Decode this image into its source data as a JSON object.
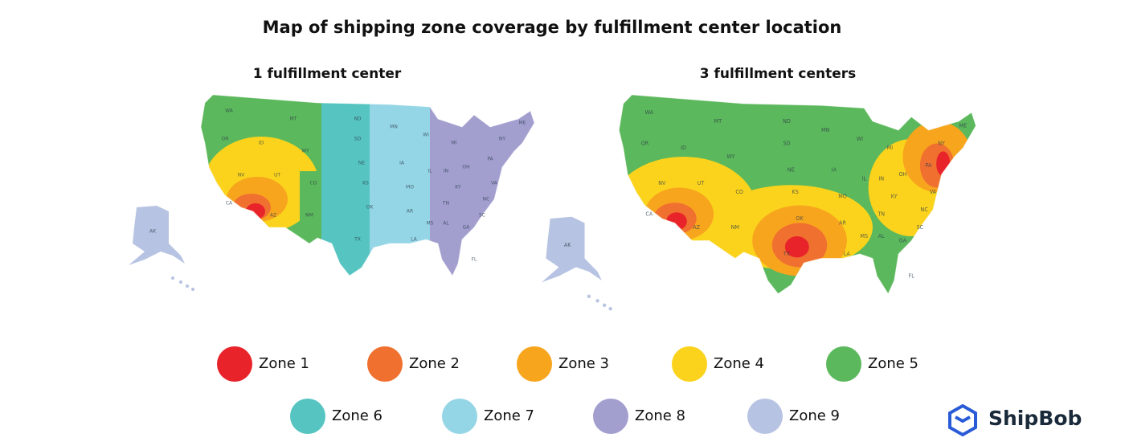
{
  "title": "Map of shipping zone coverage by fulfillment center location",
  "maps": [
    {
      "title": "1 fulfillment center",
      "state_labels": [
        "WA",
        "MT",
        "OR",
        "ID",
        "WY",
        "NV",
        "UT",
        "CO",
        "CA",
        "AZ",
        "NM",
        "ND",
        "SD",
        "NE",
        "KS",
        "OK",
        "TX",
        "MN",
        "IA",
        "MO",
        "AR",
        "LA",
        "WI",
        "IL",
        "MS",
        "AL",
        "TN",
        "MI",
        "IN",
        "OH",
        "KY",
        "GA",
        "FL",
        "SC",
        "NC",
        "VA",
        "PA",
        "NY",
        "ME",
        "AK"
      ]
    },
    {
      "title": "3 fulfillment centers",
      "state_labels": [
        "WA",
        "MT",
        "OR",
        "ID",
        "WY",
        "NV",
        "UT",
        "CO",
        "CA",
        "AZ",
        "NM",
        "ND",
        "SD",
        "NE",
        "KS",
        "OK",
        "TX",
        "MN",
        "IA",
        "MO",
        "AR",
        "LA",
        "WI",
        "IL",
        "MS",
        "AL",
        "TN",
        "MI",
        "IN",
        "OH",
        "KY",
        "GA",
        "FL",
        "SC",
        "NC",
        "VA",
        "PA",
        "NY",
        "ME",
        "AK"
      ]
    }
  ],
  "legend": [
    {
      "label": "Zone 1",
      "color": "#e8232a"
    },
    {
      "label": "Zone 2",
      "color": "#f07030"
    },
    {
      "label": "Zone 3",
      "color": "#f8a51e"
    },
    {
      "label": "Zone 4",
      "color": "#fbd31c"
    },
    {
      "label": "Zone 5",
      "color": "#5cb85c"
    },
    {
      "label": "Zone 6",
      "color": "#56c4c1"
    },
    {
      "label": "Zone 7",
      "color": "#95d6e6"
    },
    {
      "label": "Zone 8",
      "color": "#a29fcf"
    },
    {
      "label": "Zone 9",
      "color": "#b7c3e2"
    }
  ],
  "brand": "ShipBob"
}
